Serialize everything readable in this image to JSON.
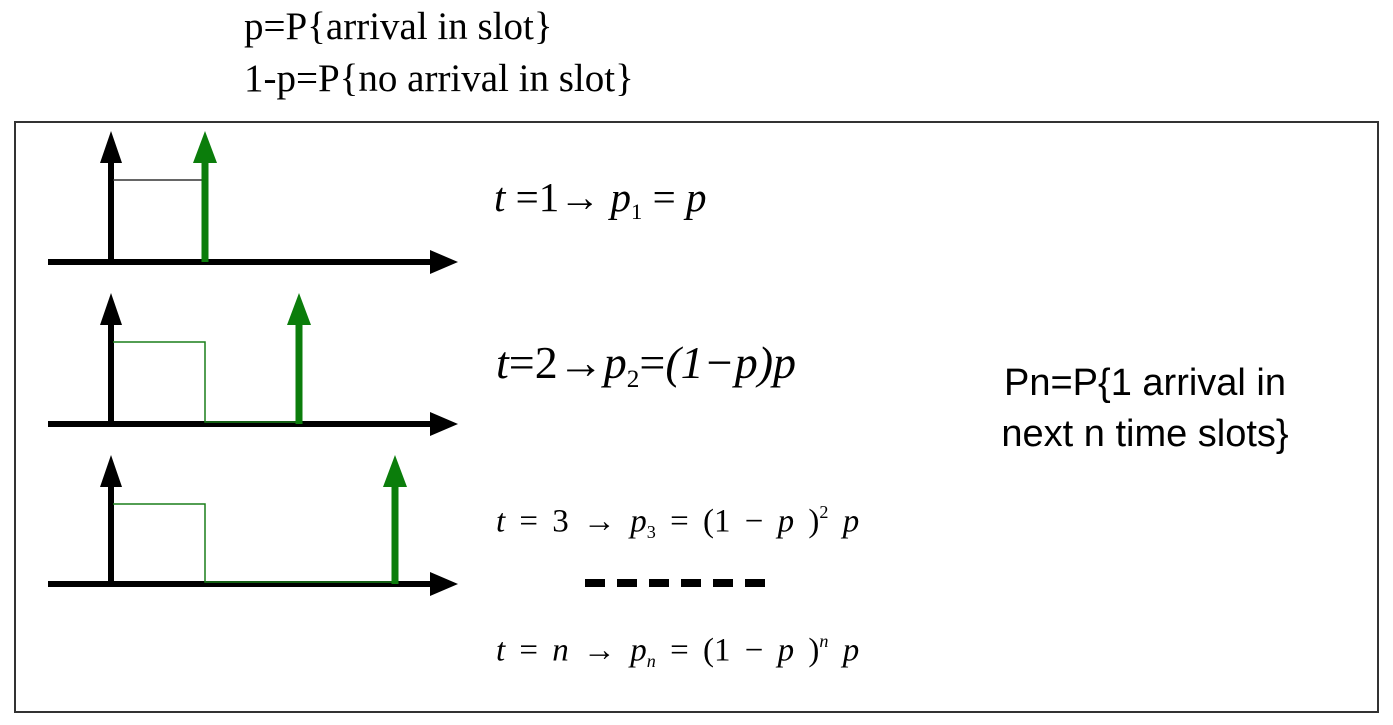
{
  "header": {
    "line1": "p=P{arrival in slot}",
    "line2": "1-p=P{no arrival in slot}"
  },
  "side_note": {
    "line1": "Pn=P{1 arrival in",
    "line2": "next n time slots}"
  },
  "equations": [
    {
      "t": "1",
      "idx": "1",
      "rhs": "p"
    },
    {
      "t": "2",
      "idx": "2",
      "rhs": "(1−p)p"
    },
    {
      "t": "3",
      "idx": "3",
      "exp": "2"
    },
    {
      "t": "n",
      "idx": "n",
      "exp": "n"
    }
  ],
  "colors": {
    "axis": "#000000",
    "arrival": "#0b7d0b",
    "waiting_path": "#1a7f1a",
    "first_path": "#333333",
    "frame_border": "#333333"
  }
}
